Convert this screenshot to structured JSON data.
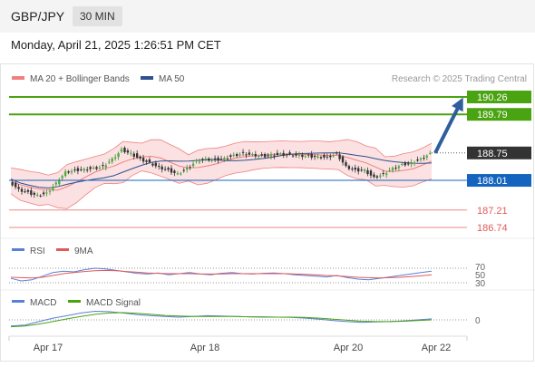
{
  "header": {
    "pair": "GBP/JPY",
    "timeframe": "30 MIN"
  },
  "timestamp": "Monday, April 21, 2025 1:26:51 PM CET",
  "colors": {
    "bb": "#f08080",
    "ma50": "#2f4f8f",
    "green": "#4aa311",
    "blue": "#1565c0",
    "red": "#e05a5a",
    "arrow": "#2e5e9e",
    "rsi": "#5b7fd6",
    "macd_signal": "#4aa311"
  },
  "chart_data": [
    {
      "type": "candlestick",
      "legend": [
        {
          "name": "MA 20 + Bollinger Bands",
          "color": "#f08080"
        },
        {
          "name": "MA 50",
          "color": "#2f4f8f"
        }
      ],
      "credit": "Research © 2025 Trading Central",
      "x_ticks": [
        "Apr 17",
        "Apr 18",
        "Apr 20",
        "Apr 22"
      ],
      "ylim": [
        186.5,
        190.5
      ],
      "current_price": "188.75",
      "levels": [
        {
          "value": 190.26,
          "label": "190.26",
          "kind": "resistance"
        },
        {
          "value": 189.79,
          "label": "189.79",
          "kind": "resistance"
        },
        {
          "value": 188.01,
          "label": "188.01",
          "kind": "pivot"
        },
        {
          "value": 187.21,
          "label": "187.21",
          "kind": "support"
        },
        {
          "value": 186.74,
          "label": "186.74",
          "kind": "support"
        }
      ],
      "arrow": {
        "from": 188.75,
        "to": 190.26,
        "direction": "up"
      },
      "close_path": [
        188.0,
        187.78,
        187.7,
        187.62,
        187.68,
        187.95,
        188.25,
        188.3,
        188.32,
        188.35,
        188.4,
        188.6,
        188.85,
        188.75,
        188.6,
        188.5,
        188.38,
        188.3,
        188.2,
        188.35,
        188.55,
        188.6,
        188.58,
        188.62,
        188.7,
        188.75,
        188.72,
        188.68,
        188.7,
        188.73,
        188.72,
        188.7,
        188.68,
        188.66,
        188.65,
        188.75,
        188.4,
        188.3,
        188.3,
        188.1,
        188.2,
        188.35,
        188.45,
        188.5,
        188.6,
        188.75
      ]
    },
    {
      "type": "line",
      "legend": [
        {
          "name": "RSI",
          "color": "#5b7fd6"
        },
        {
          "name": "9MA",
          "color": "#e05a5a"
        }
      ],
      "y_ticks": [
        "70",
        "50",
        "30"
      ],
      "ylim": [
        20,
        80
      ],
      "series": [
        {
          "name": "RSI",
          "values": [
            42,
            35,
            38,
            48,
            58,
            62,
            60,
            66,
            70,
            68,
            64,
            60,
            56,
            54,
            57,
            52,
            55,
            58,
            54,
            52,
            56,
            58,
            55,
            54,
            56,
            57,
            55,
            52,
            50,
            48,
            46,
            50,
            44,
            40,
            38,
            42,
            46,
            50,
            54,
            58,
            62
          ]
        },
        {
          "name": "9MA",
          "values": [
            45,
            44,
            43,
            45,
            50,
            55,
            58,
            61,
            63,
            64,
            63,
            61,
            59,
            57,
            56,
            55,
            55,
            55,
            54,
            54,
            54,
            55,
            55,
            55,
            55,
            55,
            55,
            54,
            53,
            52,
            50,
            49,
            47,
            45,
            44,
            43,
            44,
            45,
            47,
            49,
            52
          ]
        }
      ]
    },
    {
      "type": "line",
      "legend": [
        {
          "name": "MACD",
          "color": "#5b7fd6"
        },
        {
          "name": "MACD Signal",
          "color": "#4aa311"
        }
      ],
      "y_ticks": [
        "0"
      ],
      "ylim": [
        -0.3,
        0.35
      ],
      "series": [
        {
          "name": "MACD",
          "values": [
            -0.18,
            -0.15,
            -0.05,
            0.05,
            0.12,
            0.2,
            0.25,
            0.24,
            0.2,
            0.15,
            0.12,
            0.1,
            0.08,
            0.1,
            0.12,
            0.11,
            0.1,
            0.09,
            0.08,
            0.08,
            0.07,
            0.05,
            0.02,
            -0.02,
            -0.05,
            -0.07,
            -0.06,
            -0.05,
            -0.03,
            0.0,
            0.03
          ]
        },
        {
          "name": "MACD Signal",
          "values": [
            -0.2,
            -0.18,
            -0.12,
            -0.05,
            0.03,
            0.1,
            0.16,
            0.2,
            0.21,
            0.19,
            0.16,
            0.13,
            0.11,
            0.1,
            0.1,
            0.1,
            0.1,
            0.09,
            0.09,
            0.08,
            0.08,
            0.07,
            0.05,
            0.02,
            -0.01,
            -0.04,
            -0.05,
            -0.05,
            -0.04,
            -0.02,
            0.0
          ]
        }
      ]
    }
  ]
}
